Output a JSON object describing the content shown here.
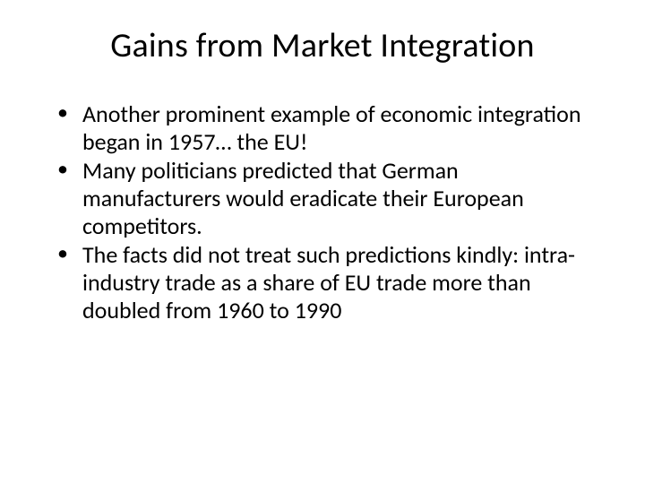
{
  "slide": {
    "title": "Gains from Market Integration",
    "bullets": [
      "Another prominent example of economic integration began in 1957… the EU!",
      "Many politicians predicted that German manufacturers would eradicate their European competitors.",
      "The facts did not treat such predictions kindly: intra-industry trade as a share of EU trade more than doubled from 1960 to 1990"
    ]
  },
  "styling": {
    "background_color": "#ffffff",
    "text_color": "#000000",
    "title_fontsize": 38,
    "body_fontsize": 26,
    "font_family": "Calibri"
  }
}
